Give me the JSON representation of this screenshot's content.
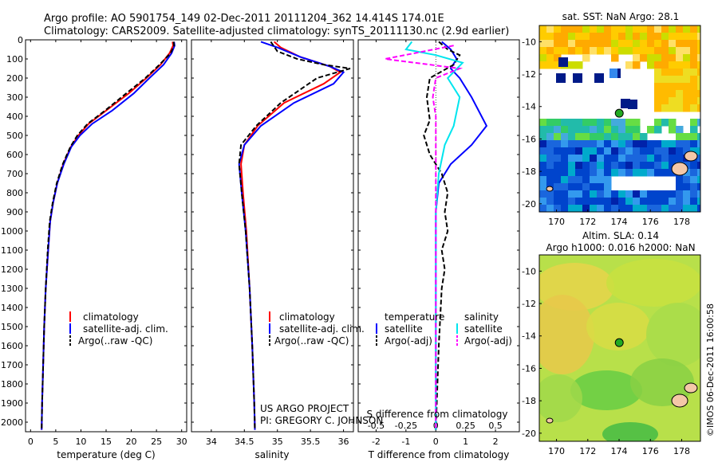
{
  "header": {
    "line1": "Argo profile: AO 5901754_149 02-Dec-2011 20111204_362 14.414S 174.01E",
    "line2": "Climatology: CARS2009. Satellite-adjusted climatology: synTS_20111130.nc (2.9d earlier)"
  },
  "credits": {
    "project": "US ARGO PROJECT",
    "pi": "PI: GREGORY C. JOHNSON",
    "imos": "©IMOS 06-Dec-2011 16:00:58"
  },
  "colors": {
    "climatology": "#ff0000",
    "satellite": "#0000ff",
    "argo": "#000000",
    "sal_satellite": "#00e5ee",
    "sal_argo": "#ff00ff"
  },
  "chart_data": [
    {
      "id": "temperature",
      "type": "line",
      "xlabel": "temperature (deg C)",
      "xlim": [
        -1,
        31
      ],
      "ylim": [
        2050,
        0
      ],
      "xticks": [
        0,
        5,
        10,
        15,
        20,
        25,
        30
      ],
      "yticks": [
        0,
        100,
        200,
        300,
        400,
        500,
        600,
        700,
        800,
        900,
        1000,
        1100,
        1200,
        1300,
        1400,
        1500,
        1600,
        1700,
        1800,
        1900,
        2000
      ],
      "legend": [
        "climatology",
        "satellite-adj. clim.",
        "Argo(..raw -QC)"
      ],
      "series": [
        {
          "name": "climatology",
          "color": "#ff0000",
          "dash": false,
          "points": [
            [
              28.2,
              10
            ],
            [
              28.3,
              30
            ],
            [
              27.6,
              70
            ],
            [
              25.8,
              130
            ],
            [
              23,
              200
            ],
            [
              19.5,
              280
            ],
            [
              15,
              370
            ],
            [
              11.5,
              440
            ],
            [
              9.5,
              500
            ],
            [
              8,
              560
            ],
            [
              6.5,
              650
            ],
            [
              5.3,
              750
            ],
            [
              4.5,
              850
            ],
            [
              3.9,
              950
            ],
            [
              3.5,
              1100
            ],
            [
              3.0,
              1300
            ],
            [
              2.7,
              1500
            ],
            [
              2.5,
              1700
            ],
            [
              2.3,
              1900
            ],
            [
              2.2,
              2040
            ]
          ]
        },
        {
          "name": "satellite-adj. clim.",
          "color": "#0000ff",
          "dash": false,
          "points": [
            [
              28.5,
              10
            ],
            [
              28.6,
              30
            ],
            [
              28,
              70
            ],
            [
              26.4,
              130
            ],
            [
              23.6,
              200
            ],
            [
              20.5,
              280
            ],
            [
              16.2,
              370
            ],
            [
              12.2,
              440
            ],
            [
              9.8,
              500
            ],
            [
              8.1,
              560
            ],
            [
              6.6,
              650
            ],
            [
              5.3,
              750
            ],
            [
              4.5,
              850
            ],
            [
              3.9,
              950
            ],
            [
              3.5,
              1100
            ],
            [
              3.0,
              1300
            ],
            [
              2.7,
              1500
            ],
            [
              2.5,
              1700
            ],
            [
              2.3,
              1900
            ],
            [
              2.2,
              2040
            ]
          ]
        },
        {
          "name": "Argo(..raw -QC)",
          "color": "#000000",
          "dash": true,
          "points": [
            [
              28.4,
              10
            ],
            [
              28.5,
              30
            ],
            [
              27.8,
              70
            ],
            [
              25.6,
              130
            ],
            [
              22.8,
              200
            ],
            [
              19,
              280
            ],
            [
              14.8,
              370
            ],
            [
              11.3,
              440
            ],
            [
              9.3,
              500
            ],
            [
              7.9,
              560
            ],
            [
              6.4,
              650
            ],
            [
              5.2,
              750
            ],
            [
              4.4,
              850
            ],
            [
              3.8,
              950
            ],
            [
              3.4,
              1100
            ],
            [
              3.0,
              1300
            ],
            [
              2.7,
              1500
            ],
            [
              2.5,
              1700
            ],
            [
              2.3,
              1900
            ],
            [
              2.2,
              2040
            ]
          ]
        }
      ]
    },
    {
      "id": "salinity",
      "type": "line",
      "xlabel": "salinity",
      "xlim": [
        33.7,
        36.15
      ],
      "ylim": [
        2050,
        0
      ],
      "xticks": [
        34,
        34.5,
        35,
        35.5,
        36
      ],
      "legend": [
        "climatology",
        "satellite-adj. clim.",
        "Argo(..raw -QC)"
      ],
      "series": [
        {
          "name": "climatology",
          "color": "#ff0000",
          "dash": false,
          "points": [
            [
              34.95,
              10
            ],
            [
              35.05,
              40
            ],
            [
              35.35,
              90
            ],
            [
              35.8,
              140
            ],
            [
              35.95,
              170
            ],
            [
              35.7,
              230
            ],
            [
              35.1,
              330
            ],
            [
              34.7,
              450
            ],
            [
              34.5,
              550
            ],
            [
              34.45,
              650
            ],
            [
              34.48,
              800
            ],
            [
              34.53,
              1000
            ],
            [
              34.58,
              1300
            ],
            [
              34.62,
              1600
            ],
            [
              34.65,
              1900
            ],
            [
              34.66,
              2040
            ]
          ]
        },
        {
          "name": "satellite-adj. clim.",
          "color": "#0000ff",
          "dash": false,
          "points": [
            [
              34.75,
              10
            ],
            [
              35,
              40
            ],
            [
              35.35,
              90
            ],
            [
              35.8,
              140
            ],
            [
              36.0,
              170
            ],
            [
              35.85,
              230
            ],
            [
              35.25,
              330
            ],
            [
              34.75,
              450
            ],
            [
              34.5,
              550
            ],
            [
              34.42,
              650
            ],
            [
              34.46,
              800
            ],
            [
              34.52,
              1000
            ],
            [
              34.58,
              1300
            ],
            [
              34.62,
              1600
            ],
            [
              34.65,
              1900
            ],
            [
              34.66,
              2040
            ]
          ]
        },
        {
          "name": "Argo(..raw -QC)",
          "color": "#000000",
          "dash": true,
          "points": [
            [
              34.9,
              10
            ],
            [
              35.0,
              60
            ],
            [
              35.3,
              100
            ],
            [
              35.7,
              130
            ],
            [
              36.1,
              150
            ],
            [
              35.6,
              200
            ],
            [
              35.05,
              330
            ],
            [
              34.68,
              450
            ],
            [
              34.45,
              550
            ],
            [
              34.42,
              650
            ],
            [
              34.46,
              800
            ],
            [
              34.52,
              1000
            ],
            [
              34.58,
              1300
            ],
            [
              34.62,
              1600
            ],
            [
              34.65,
              1900
            ],
            [
              34.66,
              2040
            ]
          ]
        }
      ]
    },
    {
      "id": "differences",
      "type": "line",
      "xlabel": "T difference from climatology",
      "xlabel_top": "S difference from climatology",
      "xlim": [
        -2.6,
        2.8
      ],
      "ylim": [
        2050,
        0
      ],
      "xticks": [
        -2,
        -1,
        0,
        1,
        2
      ],
      "xticks_top": [
        -0.5,
        -0.25,
        0,
        0.25,
        0.5
      ],
      "legend_left_title": "temperature",
      "legend_right_title": "salinity",
      "legend": [
        "satellite",
        "Argo(-adj)",
        "satellite",
        "Argo(-adj)"
      ],
      "series": [
        {
          "name": "temperature satellite",
          "color": "#0000ff",
          "dash": false,
          "points": [
            [
              0.2,
              10
            ],
            [
              0.5,
              50
            ],
            [
              0.7,
              100
            ],
            [
              0.5,
              150
            ],
            [
              0.8,
              200
            ],
            [
              1.2,
              300
            ],
            [
              1.7,
              450
            ],
            [
              1.2,
              550
            ],
            [
              0.5,
              650
            ],
            [
              0.1,
              750
            ],
            [
              0,
              900
            ],
            [
              0,
              1200
            ],
            [
              0,
              1600
            ],
            [
              0,
              2040
            ]
          ]
        },
        {
          "name": "temperature Argo(-adj)",
          "color": "#000000",
          "dash": true,
          "points": [
            [
              0.1,
              10
            ],
            [
              0.4,
              50
            ],
            [
              0.8,
              80
            ],
            [
              0.6,
              130
            ],
            [
              -0.2,
              200
            ],
            [
              -0.3,
              300
            ],
            [
              -0.2,
              420
            ],
            [
              -0.4,
              500
            ],
            [
              -0.2,
              600
            ],
            [
              0.2,
              700
            ],
            [
              0.4,
              800
            ],
            [
              0.3,
              900
            ],
            [
              0.4,
              1000
            ],
            [
              0.2,
              1100
            ],
            [
              0.3,
              1200
            ],
            [
              0.2,
              1300
            ],
            [
              0.1,
              1600
            ],
            [
              0,
              2040
            ]
          ]
        },
        {
          "name": "salinity satellite",
          "color": "#00e5ee",
          "dash": false,
          "points": [
            [
              -0.8,
              10
            ],
            [
              -1.0,
              50
            ],
            [
              0,
              80
            ],
            [
              0.9,
              120
            ],
            [
              0.4,
              200
            ],
            [
              0.8,
              300
            ],
            [
              0.6,
              450
            ],
            [
              0.3,
              550
            ],
            [
              0.1,
              700
            ],
            [
              0,
              900
            ],
            [
              0,
              1200
            ],
            [
              0,
              1600
            ],
            [
              0,
              2040
            ]
          ]
        },
        {
          "name": "salinity Argo(-adj)",
          "color": "#ff00ff",
          "dash": true,
          "points": [
            [
              0.6,
              30
            ],
            [
              -1.7,
              100
            ],
            [
              0.8,
              150
            ],
            [
              0,
              200
            ],
            [
              -0.1,
              300
            ],
            [
              0,
              400
            ],
            [
              0,
              600
            ],
            [
              0,
              800
            ],
            [
              0,
              2040
            ]
          ]
        }
      ]
    }
  ],
  "maps": [
    {
      "id": "sst_map",
      "title": "sat. SST: NaN Argo: 28.1",
      "xticks": [
        170,
        172,
        174,
        176,
        178
      ],
      "yticks": [
        -10,
        -12,
        -14,
        -16,
        -18,
        -20
      ],
      "marker": {
        "lon": 174.01,
        "lat": -14.414,
        "color": "#22aa22"
      }
    },
    {
      "id": "sla_map",
      "title": "Altim. SLA: 0.14",
      "subtitle": "Argo h1000: 0.016 h2000: NaN",
      "xticks": [
        170,
        172,
        174,
        176,
        178
      ],
      "yticks": [
        -10,
        -12,
        -14,
        -16,
        -18,
        -20
      ],
      "marker": {
        "lon": 174.01,
        "lat": -14.414,
        "color": "#22aa22"
      }
    }
  ]
}
